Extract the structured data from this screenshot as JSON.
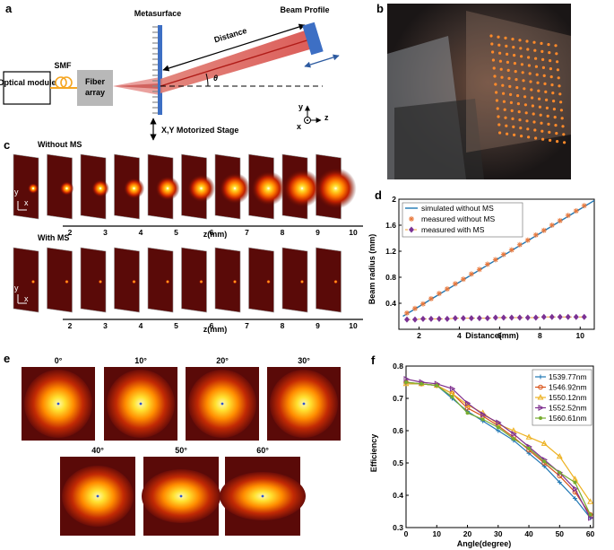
{
  "panels": {
    "a": {
      "letter": "a",
      "optical_module": "Optical module",
      "smf": "SMF",
      "fiber_array": [
        "Fiber",
        "array"
      ],
      "metasurface": "Metasurface",
      "beam_profile": "Beam Profile",
      "distance": "Distance",
      "theta": "θ",
      "stage": "X,Y Motorized Stage",
      "axes": {
        "y": "y",
        "x": "x",
        "z": "z"
      }
    },
    "b": {
      "letter": "b"
    },
    "c": {
      "letter": "c",
      "row_labels": [
        "Without MS",
        "With MS"
      ],
      "z_ticks": [
        "2",
        "3",
        "4",
        "5",
        "6",
        "7",
        "8",
        "9",
        "10"
      ],
      "z_label": "z(mm)",
      "axes": {
        "y": "y",
        "x": "x"
      }
    },
    "e": {
      "letter": "e",
      "angles": [
        "0°",
        "10°",
        "20°",
        "30°",
        "40°",
        "50°",
        "60°"
      ]
    }
  },
  "colors": {
    "accent_red": "#d9534f",
    "metasurface_blue": "#3d6fc4",
    "smf_orange": "#f5a623",
    "fiber_gray": "#b8b8b8",
    "beam_dark": "#4a0a08"
  },
  "chart_data": [
    {
      "id": "d",
      "letter": "d",
      "type": "line",
      "xlabel": "Distance(mm)",
      "ylabel": "Beam radius (mm)",
      "xlim": [
        1,
        10.7
      ],
      "ylim": [
        0,
        2
      ],
      "x_ticks": [
        2,
        4,
        6,
        8,
        10
      ],
      "y_ticks": [
        0.4,
        0.8,
        1.2,
        1.6,
        2
      ],
      "legend_position": "top-left",
      "series": [
        {
          "name": "simulated without MS",
          "color": "#1f77b4",
          "style": "line",
          "x": [
            1.2,
            10.7
          ],
          "y": [
            0.2,
            1.98
          ]
        },
        {
          "name": "measured without MS",
          "color": "#e8773a",
          "style": "star",
          "x": [
            1.4,
            1.8,
            2.2,
            2.6,
            3.0,
            3.4,
            3.8,
            4.2,
            4.6,
            5.0,
            5.4,
            5.8,
            6.2,
            6.6,
            7.0,
            7.4,
            7.8,
            8.2,
            8.6,
            9.0,
            9.4,
            9.8,
            10.2
          ],
          "y": [
            0.25,
            0.32,
            0.39,
            0.47,
            0.55,
            0.62,
            0.7,
            0.77,
            0.85,
            0.92,
            1.0,
            1.07,
            1.15,
            1.22,
            1.3,
            1.37,
            1.45,
            1.52,
            1.6,
            1.67,
            1.75,
            1.82,
            1.9
          ]
        },
        {
          "name": "measured with MS",
          "color": "#7b3294",
          "style": "diamond-dashed",
          "x": [
            1.4,
            1.8,
            2.2,
            2.6,
            3.0,
            3.4,
            3.8,
            4.2,
            4.6,
            5.0,
            5.4,
            5.8,
            6.2,
            6.6,
            7.0,
            7.4,
            7.8,
            8.2,
            8.6,
            9.0,
            9.4,
            9.8,
            10.2
          ],
          "y": [
            0.15,
            0.15,
            0.16,
            0.16,
            0.16,
            0.16,
            0.17,
            0.17,
            0.17,
            0.17,
            0.17,
            0.18,
            0.18,
            0.18,
            0.18,
            0.18,
            0.18,
            0.19,
            0.19,
            0.19,
            0.19,
            0.19,
            0.19
          ]
        }
      ]
    },
    {
      "id": "f",
      "letter": "f",
      "type": "line",
      "xlabel": "Angle(degree)",
      "ylabel": "Efficiency",
      "xlim": [
        0,
        61
      ],
      "ylim": [
        0.3,
        0.8
      ],
      "x_ticks": [
        0,
        10,
        20,
        30,
        40,
        50,
        60
      ],
      "y_ticks": [
        0.3,
        0.4,
        0.5,
        0.6,
        0.7,
        0.8
      ],
      "legend_position": "top-right",
      "x": [
        0,
        5,
        10,
        15,
        20,
        25,
        30,
        35,
        40,
        45,
        50,
        55,
        60
      ],
      "series": [
        {
          "name": "1539.77nm",
          "color": "#1f77b4",
          "marker": "plus",
          "values": [
            0.745,
            0.745,
            0.74,
            0.7,
            0.66,
            0.63,
            0.6,
            0.57,
            0.53,
            0.49,
            0.44,
            0.39,
            0.33
          ]
        },
        {
          "name": "1546.92nm",
          "color": "#d95319",
          "marker": "circle",
          "values": [
            0.75,
            0.745,
            0.74,
            0.715,
            0.67,
            0.645,
            0.615,
            0.58,
            0.54,
            0.5,
            0.46,
            0.41,
            0.34
          ]
        },
        {
          "name": "1550.12nm",
          "color": "#edb120",
          "marker": "triangle",
          "values": [
            0.745,
            0.745,
            0.74,
            0.715,
            0.68,
            0.655,
            0.62,
            0.6,
            0.58,
            0.56,
            0.52,
            0.45,
            0.38
          ]
        },
        {
          "name": "1552.52nm",
          "color": "#7e2f8e",
          "marker": "tri-right",
          "values": [
            0.76,
            0.75,
            0.745,
            0.73,
            0.685,
            0.65,
            0.625,
            0.59,
            0.55,
            0.51,
            0.47,
            0.42,
            0.33
          ]
        },
        {
          "name": "1560.61nm",
          "color": "#77ac30",
          "marker": "star",
          "values": [
            0.75,
            0.745,
            0.74,
            0.705,
            0.655,
            0.635,
            0.61,
            0.575,
            0.545,
            0.505,
            0.47,
            0.44,
            0.34
          ]
        }
      ]
    }
  ]
}
